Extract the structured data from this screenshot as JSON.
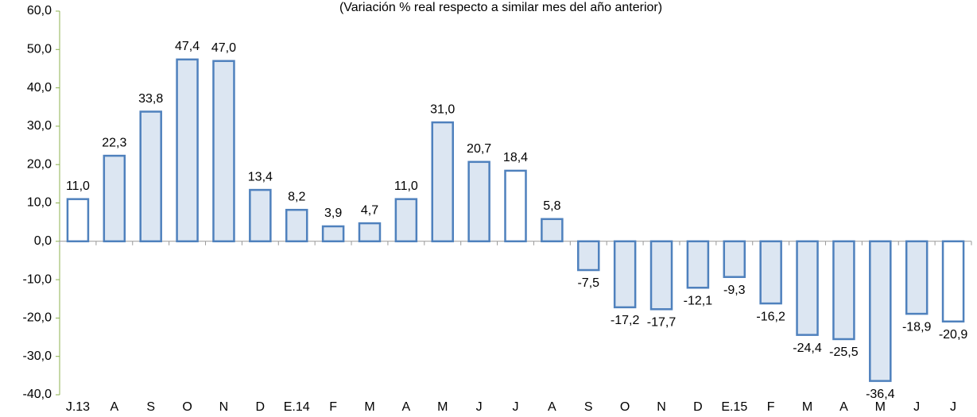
{
  "chart_data": {
    "type": "bar",
    "subtitle": "(Variación % real respecto a similar mes del año anterior)",
    "categories": [
      "J.13",
      "A",
      "S",
      "O",
      "N",
      "D",
      "E.14",
      "F",
      "M",
      "A",
      "M",
      "J",
      "J",
      "A",
      "S",
      "O",
      "N",
      "D",
      "E.15",
      "F",
      "M",
      "A",
      "M",
      "J",
      "J"
    ],
    "values": [
      11.0,
      22.3,
      33.8,
      47.4,
      47.0,
      13.4,
      8.2,
      3.9,
      4.7,
      11.0,
      31.0,
      20.7,
      18.4,
      5.8,
      -7.5,
      -17.2,
      -17.7,
      -12.1,
      -9.3,
      -16.2,
      -24.4,
      -25.5,
      -36.4,
      -18.9,
      -20.9
    ],
    "value_labels": [
      "11,0",
      "22,3",
      "33,8",
      "47,4",
      "47,0",
      "13,4",
      "8,2",
      "3,9",
      "4,7",
      "11,0",
      "31,0",
      "20,7",
      "18,4",
      "5,8",
      "-7,5",
      "-17,2",
      "-17,7",
      "-12,1",
      "-9,3",
      "-16,2",
      "-24,4",
      "-25,5",
      "-36,4",
      "-18,9",
      "-20,9"
    ],
    "color": "#4f81bd",
    "fills": [
      "#ffffff",
      "#dce6f2",
      "#dce6f2",
      "#dce6f2",
      "#dce6f2",
      "#dce6f2",
      "#dce6f2",
      "#dce6f2",
      "#dce6f2",
      "#dce6f2",
      "#dce6f2",
      "#dce6f2",
      "#ffffff",
      "#dce6f2",
      "#dce6f2",
      "#dce6f2",
      "#dce6f2",
      "#dce6f2",
      "#dce6f2",
      "#dce6f2",
      "#dce6f2",
      "#dce6f2",
      "#dce6f2",
      "#dce6f2",
      "#ffffff"
    ],
    "ylim": [
      -40,
      60
    ],
    "yticks": [
      {
        "value": -40,
        "label": "-40,0"
      },
      {
        "value": -30,
        "label": "-30,0"
      },
      {
        "value": -20,
        "label": "-20,0"
      },
      {
        "value": -10,
        "label": "-10,0"
      },
      {
        "value": 0,
        "label": "0,0"
      },
      {
        "value": 10,
        "label": "10,0"
      },
      {
        "value": 20,
        "label": "20,0"
      },
      {
        "value": 30,
        "label": "30,0"
      },
      {
        "value": 40,
        "label": "40,0"
      },
      {
        "value": 50,
        "label": "50,0"
      },
      {
        "value": 60,
        "label": "60,0"
      }
    ],
    "grid": false
  }
}
